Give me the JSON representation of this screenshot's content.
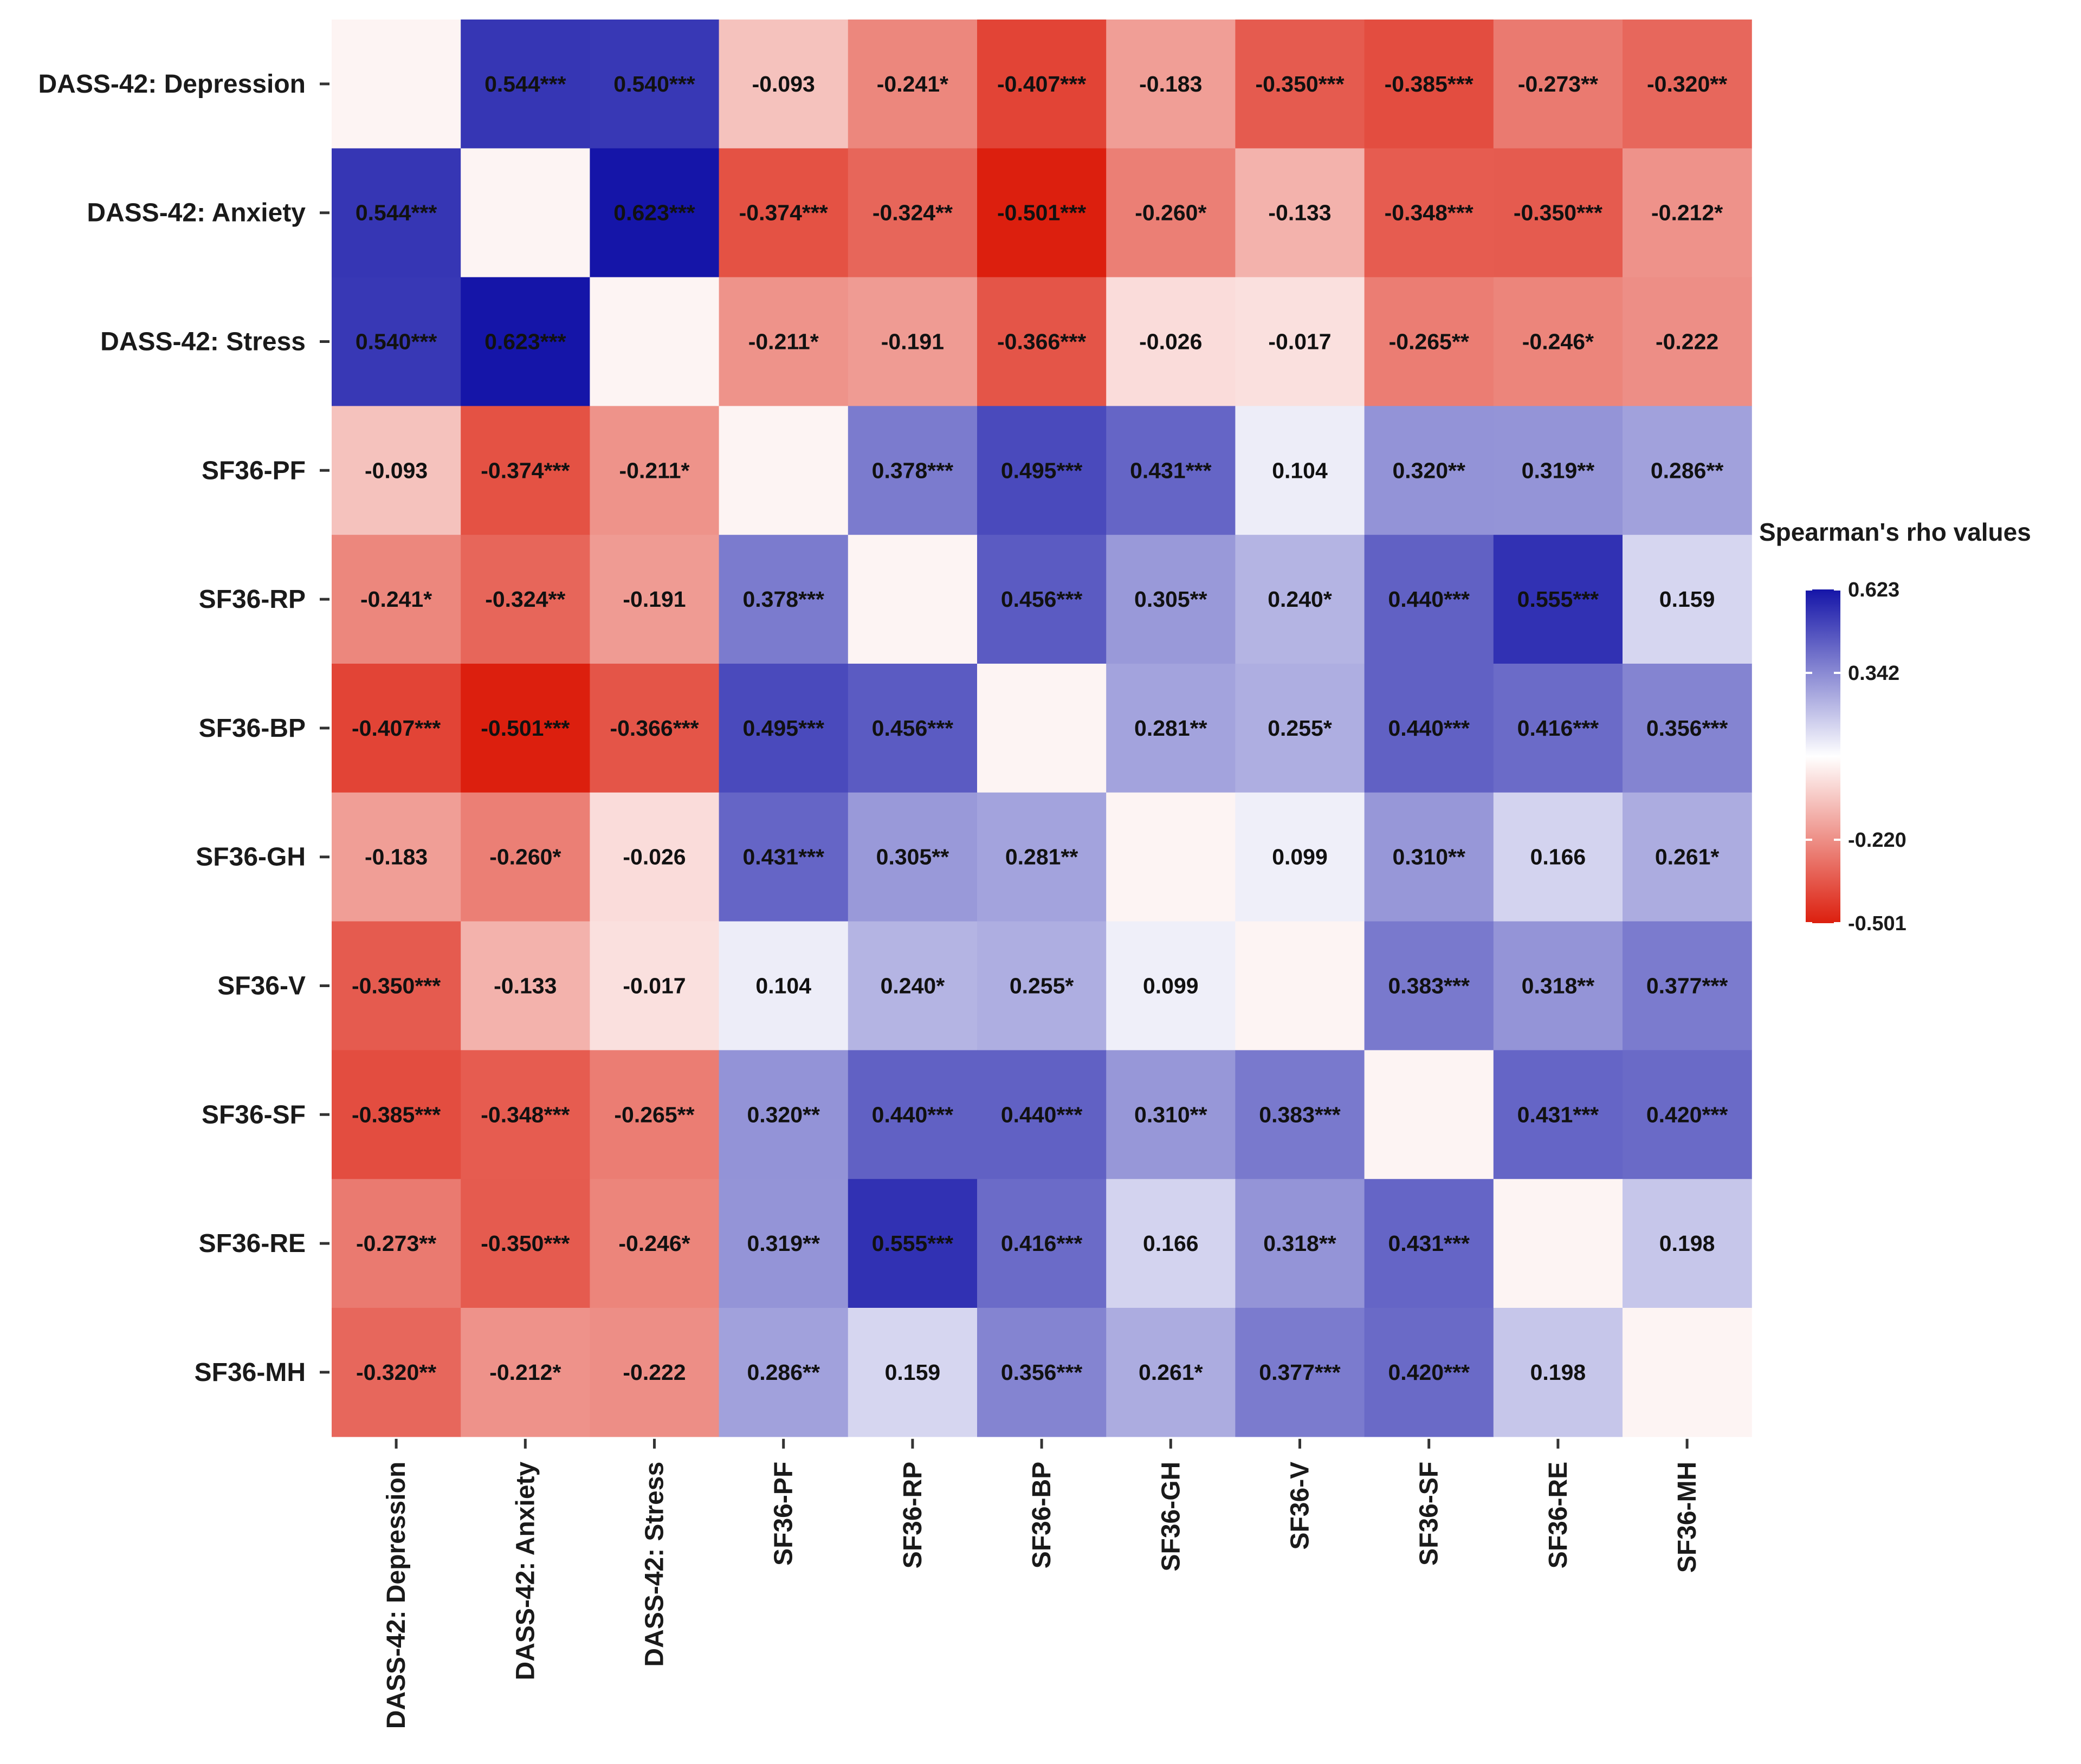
{
  "chart_data": {
    "type": "heatmap",
    "title": "",
    "xlabel": "",
    "ylabel": "",
    "categories": [
      "DASS-42: Depression",
      "DASS-42: Anxiety",
      "DASS-42: Stress",
      "SF36-PF",
      "SF36-RP",
      "SF36-BP",
      "SF36-GH",
      "SF36-V",
      "SF36-SF",
      "SF36-RE",
      "SF36-MH"
    ],
    "values": [
      [
        null,
        0.544,
        0.54,
        -0.093,
        -0.241,
        -0.407,
        -0.183,
        -0.35,
        -0.385,
        -0.273,
        -0.32
      ],
      [
        0.544,
        null,
        0.623,
        -0.374,
        -0.324,
        -0.501,
        -0.26,
        -0.133,
        -0.348,
        -0.35,
        -0.212
      ],
      [
        0.54,
        0.623,
        null,
        -0.211,
        -0.191,
        -0.366,
        -0.026,
        -0.017,
        -0.265,
        -0.246,
        -0.222
      ],
      [
        -0.093,
        -0.374,
        -0.211,
        null,
        0.378,
        0.495,
        0.431,
        0.104,
        0.32,
        0.319,
        0.286
      ],
      [
        -0.241,
        -0.324,
        -0.191,
        0.378,
        null,
        0.456,
        0.305,
        0.24,
        0.44,
        0.555,
        0.159
      ],
      [
        -0.407,
        -0.501,
        -0.366,
        0.495,
        0.456,
        null,
        0.281,
        0.255,
        0.44,
        0.416,
        0.356
      ],
      [
        -0.183,
        -0.26,
        -0.026,
        0.431,
        0.305,
        0.281,
        null,
        0.099,
        0.31,
        0.166,
        0.261
      ],
      [
        -0.35,
        -0.133,
        -0.017,
        0.104,
        0.24,
        0.255,
        0.099,
        null,
        0.383,
        0.318,
        0.377
      ],
      [
        -0.385,
        -0.348,
        -0.265,
        0.32,
        0.44,
        0.44,
        0.31,
        0.383,
        null,
        0.431,
        0.42
      ],
      [
        -0.273,
        -0.35,
        -0.246,
        0.319,
        0.555,
        0.416,
        0.166,
        0.318,
        0.431,
        null,
        0.198
      ],
      [
        -0.32,
        -0.212,
        -0.222,
        0.286,
        0.159,
        0.356,
        0.261,
        0.377,
        0.42,
        0.198,
        null
      ]
    ],
    "labels": [
      [
        "",
        "0.544***",
        "0.540***",
        "-0.093",
        "-0.241*",
        "-0.407***",
        "-0.183",
        "-0.350***",
        "-0.385***",
        "-0.273**",
        "-0.320**"
      ],
      [
        "0.544***",
        "",
        "0.623***",
        "-0.374***",
        "-0.324**",
        "-0.501***",
        "-0.260*",
        "-0.133",
        "-0.348***",
        "-0.350***",
        "-0.212*"
      ],
      [
        "0.540***",
        "0.623***",
        "",
        "-0.211*",
        "-0.191",
        "-0.366***",
        "-0.026",
        "-0.017",
        "-0.265**",
        "-0.246*",
        "-0.222"
      ],
      [
        "-0.093",
        "-0.374***",
        "-0.211*",
        "",
        "0.378***",
        "0.495***",
        "0.431***",
        "0.104",
        "0.320**",
        "0.319**",
        "0.286**"
      ],
      [
        "-0.241*",
        "-0.324**",
        "-0.191",
        "0.378***",
        "",
        "0.456***",
        "0.305**",
        "0.240*",
        "0.440***",
        "0.555***",
        "0.159"
      ],
      [
        "-0.407***",
        "-0.501***",
        "-0.366***",
        "0.495***",
        "0.456***",
        "",
        "0.281**",
        "0.255*",
        "0.440***",
        "0.416***",
        "0.356***"
      ],
      [
        "-0.183",
        "-0.260*",
        "-0.026",
        "0.431***",
        "0.305**",
        "0.281**",
        "",
        "0.099",
        "0.310**",
        "0.166",
        "0.261*"
      ],
      [
        "-0.350***",
        "-0.133",
        "-0.017",
        "0.104",
        "0.240*",
        "0.255*",
        "0.099",
        "",
        "0.383***",
        "0.318**",
        "0.377***"
      ],
      [
        "-0.385***",
        "-0.348***",
        "-0.265**",
        "0.320**",
        "0.440***",
        "0.440***",
        "0.310**",
        "0.383***",
        "",
        "0.431***",
        "0.420***"
      ],
      [
        "-0.273**",
        "-0.350***",
        "-0.246*",
        "0.319**",
        "0.555***",
        "0.416***",
        "0.166",
        "0.318**",
        "0.431***",
        "",
        "0.198"
      ],
      [
        "-0.320**",
        "-0.212*",
        "-0.222",
        "0.286**",
        "0.159",
        "0.356***",
        "0.261*",
        "0.377***",
        "0.420***",
        "0.198",
        ""
      ]
    ],
    "legend": {
      "title": "Spearman's rho values",
      "min": -0.501,
      "max": 0.623,
      "midpoint": 0.061,
      "ticks": [
        0.623,
        0.342,
        -0.22,
        -0.501
      ],
      "tick_labels": [
        "0.623",
        "0.342",
        "-0.220",
        "-0.501"
      ],
      "placement": "right"
    },
    "colors": {
      "high": "#1515a8",
      "mid": "#ffffff",
      "low": "#dc1f0e"
    }
  }
}
